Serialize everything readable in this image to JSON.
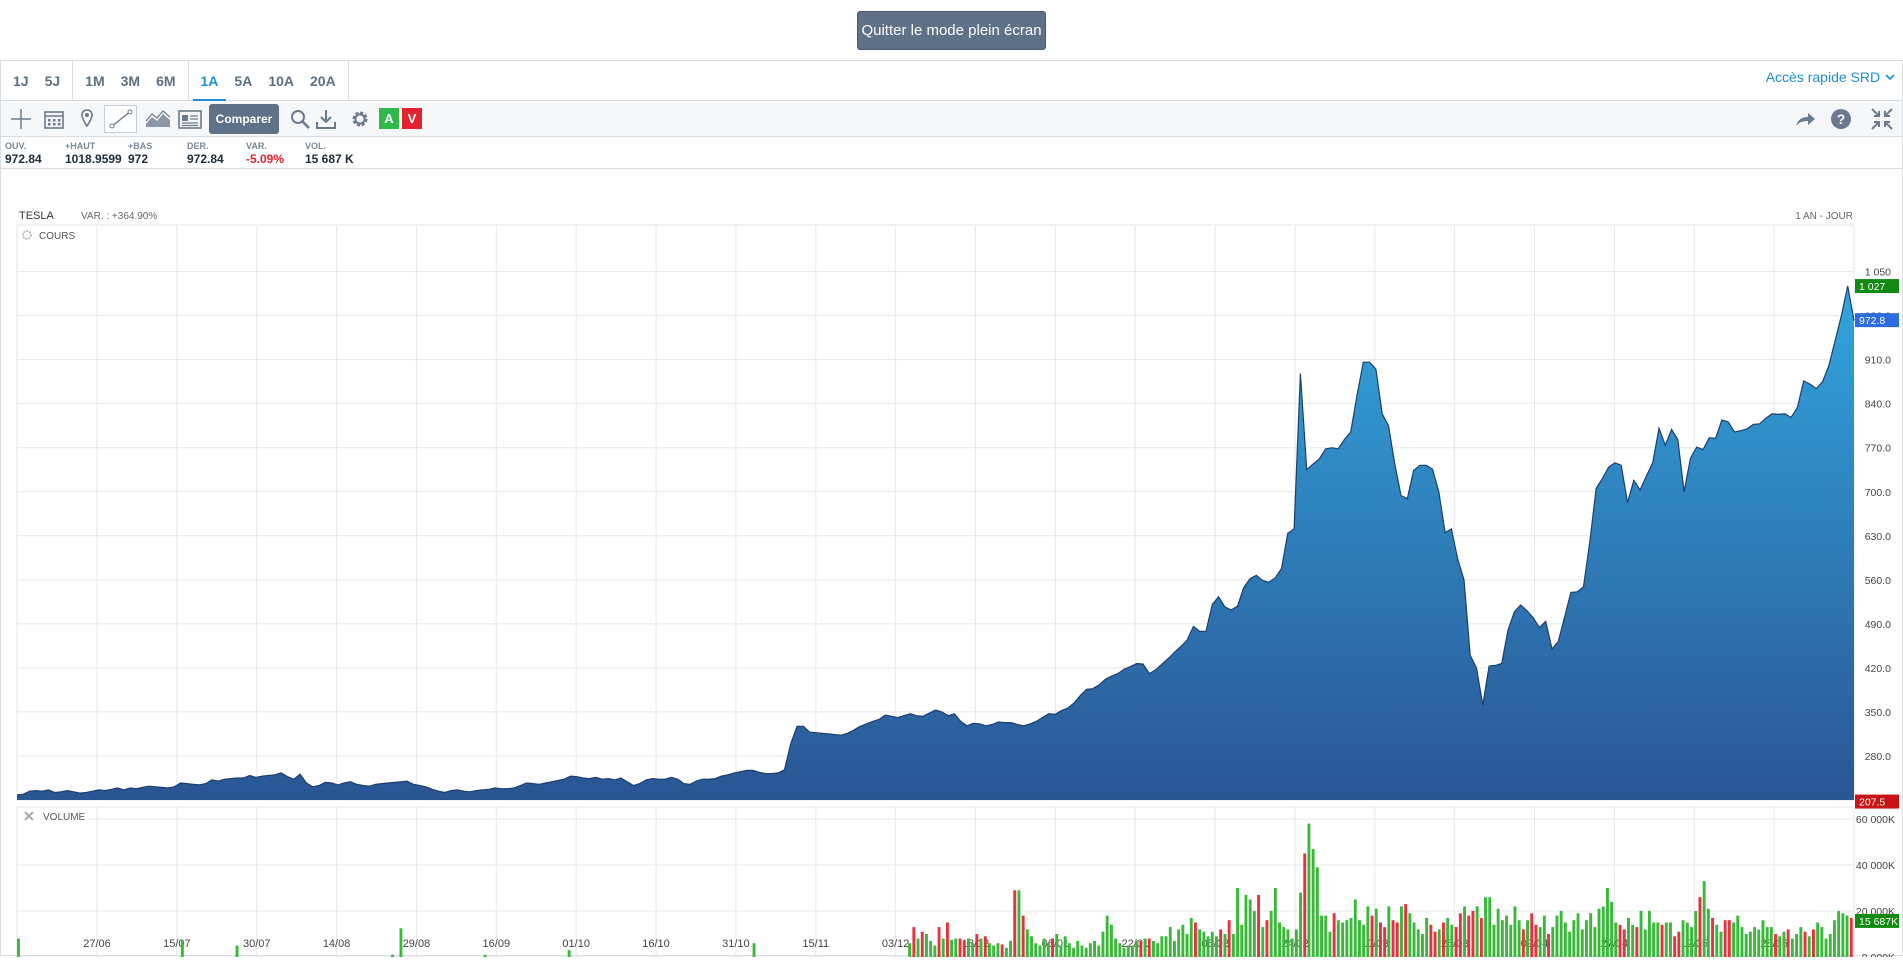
{
  "top": {
    "exit_fullscreen": "Quitter le mode plein écran"
  },
  "periods": {
    "groups": [
      [
        "1J",
        "5J"
      ],
      [
        "1M",
        "3M",
        "6M"
      ],
      [
        "1A",
        "5A",
        "10A",
        "20A"
      ]
    ],
    "active": "1A"
  },
  "quick_access": "Accès rapide SRD",
  "toolbar": {
    "compare": "Comparer",
    "buy": "A",
    "sell": "V"
  },
  "quote": {
    "open": {
      "label": "OUV.",
      "value": "972.84"
    },
    "high": {
      "label": "+HAUT",
      "value": "1018.9599"
    },
    "low": {
      "label": "+BAS",
      "value": "972"
    },
    "last": {
      "label": "DER.",
      "value": "972.84"
    },
    "var": {
      "label": "VAR.",
      "value": "-5.09%"
    },
    "vol": {
      "label": "VOL.",
      "value": "15 687 K"
    }
  },
  "colors": {
    "up": "#3ab83a",
    "down": "#e8313c",
    "accent": "#1f8fd6",
    "area_top": "#32a5dd",
    "area_bottom": "#2a5594",
    "line": "#1c3f6e"
  },
  "chart_data": [
    {
      "type": "area",
      "name": "TESLA",
      "title": "TESLA",
      "subtitle": "VAR. : +364.90%",
      "period_label": "1 AN - JOUR",
      "panel_label": "COURS",
      "ylim": [
        210,
        1070
      ],
      "yticks": [
        "1 050",
        "980.0",
        "910.0",
        "840.0",
        "770.0",
        "700.0",
        "630.0",
        "560.0",
        "490.0",
        "420.0",
        "350.0",
        "280.0"
      ],
      "ytick_values": [
        1050,
        980,
        910,
        840,
        770,
        700,
        630,
        560,
        490,
        420,
        350,
        280
      ],
      "badges": [
        {
          "label": "1 027",
          "value": 1027,
          "color": "#108a10"
        },
        {
          "label": "972.8",
          "value": 972.8,
          "color": "#2d6be0"
        },
        {
          "label": "207.5",
          "value": 207.5,
          "color": "#c81414"
        }
      ],
      "x_labels": [
        "27/06",
        "15/07",
        "30/07",
        "14/08",
        "29/08",
        "16/09",
        "01/10",
        "16/10",
        "31/10",
        "15/11",
        "03/12",
        "18/12",
        "06/01",
        "22/01",
        "06/02",
        "24/02",
        "10/03",
        "25/03",
        "09/04",
        "27/04",
        "12/05",
        "28/05"
      ],
      "values": [
        218,
        219,
        224,
        225,
        224,
        226,
        222,
        223,
        225,
        223,
        221,
        222,
        224,
        226,
        225,
        227,
        229,
        226,
        229,
        228,
        230,
        232,
        231,
        230,
        229,
        231,
        237,
        236,
        235,
        234,
        236,
        242,
        240,
        243,
        244,
        245,
        245,
        249,
        246,
        248,
        249,
        250,
        253,
        247,
        243,
        251,
        237,
        231,
        233,
        238,
        237,
        234,
        237,
        239,
        235,
        233,
        232,
        235,
        236,
        237,
        238,
        239,
        240,
        235,
        233,
        231,
        227,
        224,
        222,
        225,
        226,
        224,
        223,
        225,
        226,
        227,
        229,
        228,
        228,
        229,
        233,
        237,
        236,
        235,
        237,
        239,
        241,
        243,
        248,
        247,
        245,
        244,
        246,
        243,
        244,
        242,
        245,
        239,
        233,
        236,
        242,
        244,
        243,
        243,
        246,
        243,
        236,
        235,
        240,
        243,
        243,
        244,
        248,
        250,
        253,
        255,
        257,
        257,
        254,
        252,
        252,
        253,
        258,
        300,
        327,
        327,
        318,
        317,
        316,
        315,
        314,
        313,
        316,
        321,
        327,
        331,
        335,
        338,
        345,
        343,
        341,
        344,
        347,
        344,
        343,
        348,
        353,
        350,
        344,
        347,
        335,
        328,
        332,
        331,
        328,
        330,
        334,
        333,
        333,
        330,
        328,
        331,
        335,
        341,
        347,
        346,
        352,
        356,
        364,
        376,
        386,
        387,
        393,
        402,
        407,
        411,
        418,
        422,
        427,
        426,
        411,
        417,
        426,
        435,
        445,
        454,
        464,
        486,
        478,
        478,
        521,
        533,
        517,
        512,
        518,
        548,
        562,
        567,
        559,
        556,
        563,
        578,
        634,
        641,
        888,
        735,
        744,
        752,
        768,
        770,
        768,
        783,
        795,
        853,
        906,
        906,
        895,
        824,
        805,
        744,
        694,
        689,
        734,
        742,
        742,
        736,
        700,
        635,
        641,
        593,
        560,
        440,
        420,
        361,
        423,
        424,
        427,
        480,
        509,
        520,
        511,
        500,
        484,
        494,
        450,
        462,
        501,
        540,
        541,
        549,
        620,
        705,
        721,
        739,
        746,
        742,
        683,
        718,
        703,
        725,
        746,
        801,
        774,
        799,
        783,
        700,
        753,
        771,
        767,
        786,
        785,
        814,
        811,
        795,
        797,
        800,
        807,
        808,
        817,
        824,
        823,
        824,
        818,
        834,
        876,
        871,
        864,
        875,
        900,
        940,
        980,
        1027,
        972
      ]
    },
    {
      "type": "bar",
      "name": "VOLUME",
      "panel_label": "VOLUME",
      "ylim": [
        0,
        60000
      ],
      "yticks": [
        "60 000K",
        "40 000K",
        "20 000K",
        "0.000K"
      ],
      "ytick_values": [
        60000,
        40000,
        20000,
        0
      ],
      "badge": {
        "label": "15 687K",
        "value": 15687,
        "color": "#108a10"
      },
      "volumes": [
        8000,
        0,
        0,
        0,
        0,
        0,
        0,
        0,
        0,
        0,
        0,
        0,
        0,
        0,
        0,
        0,
        0,
        0,
        0,
        0,
        0,
        0,
        0,
        0,
        0,
        0,
        0,
        0,
        0,
        0,
        0,
        0,
        0,
        0,
        0,
        0,
        0,
        0,
        0,
        7500,
        0,
        0,
        0,
        0,
        0,
        0,
        0,
        0,
        0,
        0,
        0,
        0,
        5000,
        0,
        0,
        0,
        0,
        0,
        0,
        0,
        0,
        0,
        0,
        0,
        0,
        0,
        0,
        0,
        0,
        0,
        0,
        0,
        0,
        0,
        0,
        0,
        0,
        0,
        0,
        0,
        0,
        0,
        0,
        0,
        0,
        0,
        0,
        0,
        0,
        1000,
        0,
        12500,
        0,
        0,
        0,
        0,
        0,
        0,
        0,
        0,
        0,
        0,
        0,
        0,
        0,
        0,
        0,
        0,
        0,
        0,
        0,
        1000,
        0,
        0,
        0,
        0,
        0,
        0,
        0,
        0,
        0,
        0,
        0,
        0,
        0,
        0,
        0,
        0,
        0,
        0,
        0,
        3000,
        0,
        0,
        0,
        0,
        0,
        0,
        0,
        0,
        0,
        0,
        0,
        0,
        0,
        0,
        0,
        0,
        0,
        0,
        0,
        0,
        0,
        0,
        0,
        0,
        0,
        0,
        0,
        0,
        0,
        0,
        0,
        0,
        0,
        0,
        0,
        0,
        0,
        0,
        0,
        0,
        0,
        0,
        0,
        6000,
        0,
        0,
        0,
        0,
        0,
        0,
        0,
        0,
        0,
        0,
        0,
        0,
        0,
        0,
        0,
        0,
        0,
        0,
        0,
        0,
        0,
        0,
        0,
        0,
        0,
        0,
        0,
        0,
        0,
        0,
        0,
        0,
        0,
        0,
        0,
        0,
        6000,
        13000,
        8000,
        11000,
        10000,
        7000,
        5000,
        13000,
        8000,
        15000,
        7500,
        8000,
        8000,
        7000,
        8000,
        6000,
        10000,
        8000,
        9000,
        6000,
        5000,
        6000,
        5500,
        4000,
        7000,
        29000,
        29000,
        18000,
        12000,
        9000,
        6000,
        5000,
        8000,
        6000,
        8000,
        10000,
        5000,
        9000,
        6000,
        4000,
        7000,
        5000,
        4000,
        6000,
        7000,
        5000,
        11000,
        18000,
        14000,
        8000,
        6000,
        4000,
        5000,
        5000,
        7000,
        7000,
        8000,
        8000,
        7000,
        6000,
        9000,
        9000,
        13000,
        7000,
        12000,
        14000,
        10000,
        17000,
        15000,
        12000,
        11000,
        9000,
        11000,
        9000,
        12000,
        10000,
        16000,
        10000,
        30000,
        14000,
        27000,
        25000,
        20000,
        27000,
        13000,
        16000,
        20000,
        30000,
        15000,
        13000,
        12000,
        8000,
        12000,
        28000,
        45000,
        58000,
        47000,
        39000,
        18000,
        18000,
        11000,
        19000,
        16000,
        15000,
        16000,
        17000,
        25000,
        16000,
        14000,
        22000,
        18000,
        21000,
        15000,
        13000,
        22000,
        16000,
        15000,
        22000,
        23000,
        19000,
        15000,
        12000,
        10000,
        17000,
        14000,
        11000,
        12000,
        15000,
        17000,
        14000,
        13000,
        19000,
        22000,
        18000,
        20000,
        22000,
        17000,
        26000,
        26000,
        14000,
        21000,
        16000,
        18000,
        14000,
        22000,
        16000,
        12000,
        16000,
        19000,
        14000,
        13000,
        18000,
        10000,
        13000,
        18000,
        20000,
        15000,
        11000,
        16000,
        19000,
        12000,
        16000,
        19000,
        13000,
        21000,
        22000,
        30000,
        24000,
        15000,
        14000,
        12000,
        17000,
        14000,
        13000,
        20000,
        12000,
        20000,
        15000,
        15000,
        14000,
        15000,
        15000,
        9000,
        11000,
        16000,
        15000,
        13000,
        20000,
        26000,
        33000,
        21000,
        17000,
        14000,
        11000,
        16000,
        16000,
        15000,
        18000,
        13000,
        10000,
        11000,
        13000,
        12000,
        16000,
        13000,
        13000,
        10000,
        9000,
        11000,
        12000,
        8000,
        10000,
        13000,
        11000,
        9000,
        12000,
        15000,
        13000,
        8000,
        10000,
        16000,
        20000,
        19000,
        18000,
        17000
      ]
    }
  ]
}
